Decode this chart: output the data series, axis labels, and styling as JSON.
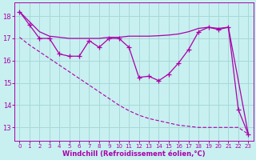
{
  "title": "",
  "xlabel": "Windchill (Refroidissement éolien,°C)",
  "background_color": "#c8f0f0",
  "grid_color": "#a8d8d8",
  "line_color": "#aa00aa",
  "x_ticks": [
    0,
    1,
    2,
    3,
    4,
    5,
    6,
    7,
    8,
    9,
    10,
    11,
    12,
    13,
    14,
    15,
    16,
    17,
    18,
    19,
    20,
    21,
    22,
    23
  ],
  "y_ticks": [
    13,
    14,
    15,
    16,
    17,
    18
  ],
  "ylim": [
    12.4,
    18.6
  ],
  "xlim": [
    -0.5,
    23.5
  ],
  "series_windchill": [
    18.2,
    17.6,
    17.0,
    17.0,
    16.3,
    16.2,
    16.2,
    16.9,
    16.6,
    17.0,
    17.0,
    16.6,
    15.25,
    15.3,
    15.1,
    15.4,
    15.9,
    16.5,
    17.3,
    17.5,
    17.4,
    17.5,
    13.8,
    12.7
  ],
  "series_temp": [
    18.2,
    17.75,
    17.3,
    17.1,
    17.05,
    17.0,
    17.0,
    17.0,
    17.0,
    17.05,
    17.05,
    17.1,
    17.1,
    17.1,
    17.12,
    17.15,
    17.2,
    17.3,
    17.45,
    17.5,
    17.45,
    17.5,
    15.1,
    12.7
  ],
  "series_diagonal": [
    17.05,
    16.7,
    16.4,
    16.1,
    15.8,
    15.5,
    15.2,
    14.9,
    14.6,
    14.3,
    14.0,
    13.75,
    13.55,
    13.4,
    13.3,
    13.2,
    13.1,
    13.05,
    13.0,
    13.0,
    13.0,
    13.0,
    13.0,
    12.7
  ]
}
